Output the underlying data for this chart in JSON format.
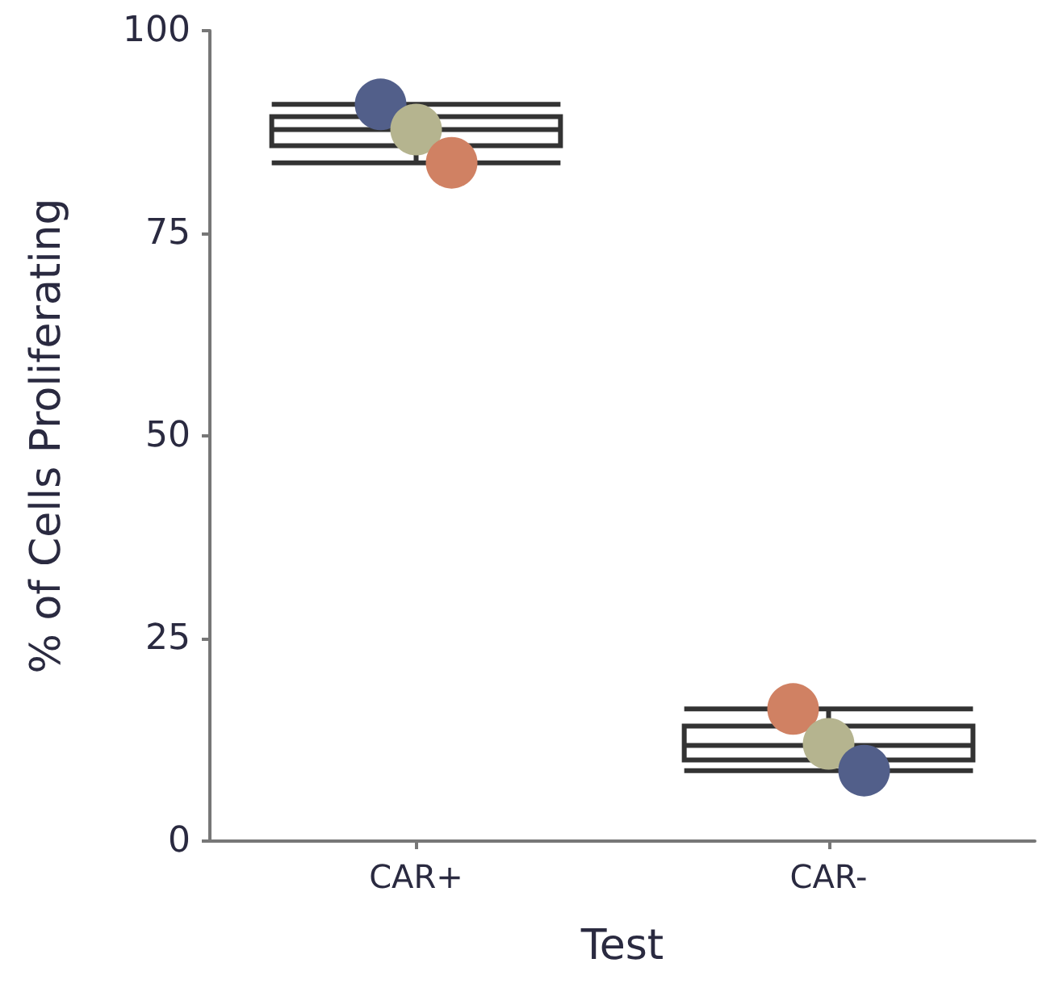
{
  "chart_data": {
    "type": "box",
    "xlabel": "Test",
    "ylabel": "% of Cells Proliferating",
    "categories": [
      "CAR+",
      "CAR-"
    ],
    "boxes": [
      {
        "low": 83.7,
        "q1": 85.8,
        "median": 87.8,
        "q3": 89.4,
        "high": 90.9
      },
      {
        "low": 8.7,
        "q1": 10.0,
        "median": 11.8,
        "q3": 14.2,
        "high": 16.3
      }
    ],
    "series": [
      {
        "type": "scatter",
        "x": [
          "CAR+",
          "CAR+",
          "CAR+",
          "CAR-",
          "CAR-",
          "CAR-"
        ],
        "values": [
          90.9,
          87.8,
          83.7,
          16.3,
          12.0,
          8.7
        ],
        "colors": [
          "#525f8a",
          "#b5b48f",
          "#d08163",
          "#d08163",
          "#b5b48f",
          "#525f8a"
        ]
      }
    ],
    "ylim": [
      0,
      100
    ],
    "yticks": [
      0,
      25,
      50,
      75,
      100
    ],
    "grid": false,
    "marker": "circle"
  }
}
